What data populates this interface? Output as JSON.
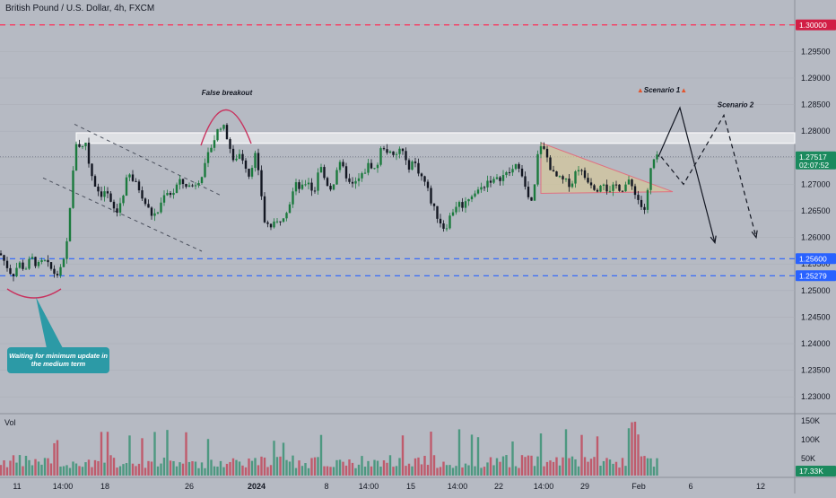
{
  "header": {
    "title": "British Pound / U.S. Dollar, 4h, FXCM"
  },
  "colors": {
    "background": "#b6bac3",
    "up": "#26a69a",
    "down": "#131722",
    "up_candle": "#1b7a3d",
    "resistance_line": "#ff2d55",
    "support_line": "#2962ff",
    "zone": "#ffffff",
    "triangle_fill": "#d6c89a",
    "triangle_edge": "#e07080",
    "callout_bg": "#2c9aa6"
  },
  "chart_data": {
    "type": "candlestick",
    "symbol": "GBPUSD",
    "timeframe": "4h",
    "y_axis": {
      "ticks": [
        "1.30000",
        "1.29500",
        "1.29000",
        "1.28500",
        "1.28000",
        "1.27500",
        "1.27000",
        "1.26500",
        "1.26000",
        "1.25500",
        "1.25000",
        "1.24500",
        "1.24000",
        "1.23500",
        "1.23000"
      ],
      "ylim": [
        1.227,
        1.303
      ]
    },
    "x_axis": {
      "ticks": [
        "11",
        "14:00",
        "18",
        "26",
        "2024",
        "8",
        "14:00",
        "15",
        "14:00",
        "22",
        "14:00",
        "29",
        "Feb",
        "6",
        "12"
      ]
    },
    "price_badges": {
      "current_price": "1.27517",
      "countdown": "02:07:52",
      "resistance": "1.30000",
      "support_upper": "1.25600",
      "support_lower": "1.25279"
    },
    "levels": [
      {
        "name": "resistance",
        "value": 1.3,
        "style": "dashed"
      },
      {
        "name": "support_upper",
        "value": 1.256,
        "style": "dashed"
      },
      {
        "name": "support_lower",
        "value": 1.25279,
        "style": "dashed"
      }
    ],
    "zone": {
      "from": 1.2777,
      "to": 1.2797
    },
    "current_price": 1.27517,
    "price_path": [
      [
        0,
        1.257
      ],
      [
        7,
        1.2548
      ],
      [
        14,
        1.2528
      ],
      [
        21,
        1.2552
      ],
      [
        28,
        1.254
      ],
      [
        35,
        1.2562
      ],
      [
        42,
        1.2546
      ],
      [
        49,
        1.2556
      ],
      [
        56,
        1.2542
      ],
      [
        63,
        1.2528
      ],
      [
        70,
        1.2545
      ],
      [
        74,
        1.258
      ],
      [
        78,
        1.266
      ],
      [
        82,
        1.273
      ],
      [
        86,
        1.2795
      ],
      [
        90,
        1.276
      ],
      [
        95,
        1.2785
      ],
      [
        100,
        1.273
      ],
      [
        106,
        1.27
      ],
      [
        112,
        1.268
      ],
      [
        118,
        1.269
      ],
      [
        124,
        1.266
      ],
      [
        130,
        1.2645
      ],
      [
        137,
        1.268
      ],
      [
        143,
        1.272
      ],
      [
        149,
        1.2705
      ],
      [
        156,
        1.269
      ],
      [
        163,
        1.266
      ],
      [
        170,
        1.264
      ],
      [
        177,
        1.265
      ],
      [
        184,
        1.269
      ],
      [
        192,
        1.268
      ],
      [
        199,
        1.2705
      ],
      [
        206,
        1.27
      ],
      [
        213,
        1.2695
      ],
      [
        220,
        1.2705
      ],
      [
        227,
        1.2725
      ],
      [
        234,
        1.2765
      ],
      [
        240,
        1.279
      ],
      [
        245,
        1.2812
      ],
      [
        250,
        1.2805
      ],
      [
        255,
        1.278
      ],
      [
        260,
        1.274
      ],
      [
        266,
        1.276
      ],
      [
        272,
        1.2745
      ],
      [
        278,
        1.2715
      ],
      [
        284,
        1.276
      ],
      [
        290,
        1.27
      ],
      [
        295,
        1.263
      ],
      [
        301,
        1.262
      ],
      [
        308,
        1.2625
      ],
      [
        315,
        1.264
      ],
      [
        322,
        1.266
      ],
      [
        329,
        1.27
      ],
      [
        336,
        1.269
      ],
      [
        343,
        1.271
      ],
      [
        350,
        1.268
      ],
      [
        356,
        1.274
      ],
      [
        363,
        1.2705
      ],
      [
        370,
        1.269
      ],
      [
        377,
        1.274
      ],
      [
        384,
        1.2725
      ],
      [
        391,
        1.2695
      ],
      [
        398,
        1.2705
      ],
      [
        405,
        1.272
      ],
      [
        412,
        1.274
      ],
      [
        419,
        1.2725
      ],
      [
        426,
        1.2775
      ],
      [
        433,
        1.276
      ],
      [
        440,
        1.2748
      ],
      [
        447,
        1.2772
      ],
      [
        454,
        1.273
      ],
      [
        461,
        1.2745
      ],
      [
        468,
        1.272
      ],
      [
        475,
        1.27
      ],
      [
        482,
        1.266
      ],
      [
        489,
        1.2635
      ],
      [
        496,
        1.2615
      ],
      [
        503,
        1.2645
      ],
      [
        510,
        1.2665
      ],
      [
        517,
        1.266
      ],
      [
        524,
        1.268
      ],
      [
        531,
        1.2685
      ],
      [
        538,
        1.2695
      ],
      [
        545,
        1.271
      ],
      [
        552,
        1.2705
      ],
      [
        559,
        1.2715
      ],
      [
        566,
        1.272
      ],
      [
        573,
        1.273
      ],
      [
        580,
        1.2738
      ],
      [
        587,
        1.268
      ],
      [
        594,
        1.266
      ],
      [
        599,
        1.275
      ],
      [
        603,
        1.2775
      ],
      [
        609,
        1.2755
      ],
      [
        616,
        1.272
      ],
      [
        623,
        1.271
      ],
      [
        630,
        1.2705
      ],
      [
        637,
        1.27
      ],
      [
        644,
        1.2735
      ],
      [
        651,
        1.2715
      ],
      [
        658,
        1.2705
      ],
      [
        665,
        1.269
      ],
      [
        672,
        1.271
      ],
      [
        679,
        1.268
      ],
      [
        686,
        1.27
      ],
      [
        693,
        1.269
      ],
      [
        700,
        1.2705
      ],
      [
        707,
        1.269
      ],
      [
        714,
        1.266
      ],
      [
        720,
        1.265
      ],
      [
        724,
        1.272
      ],
      [
        729,
        1.2745
      ],
      [
        734,
        1.2751
      ]
    ],
    "projections": [
      {
        "name": "Scenario 1",
        "points": [
          [
            734,
            1.2752
          ],
          [
            758,
            1.2844
          ],
          [
            797,
            1.259
          ]
        ],
        "style": "solid"
      },
      {
        "name": "Scenario 2",
        "points": [
          [
            737,
            1.2752
          ],
          [
            762,
            1.27
          ],
          [
            807,
            1.283
          ],
          [
            843,
            1.26
          ]
        ],
        "style": "dashed"
      }
    ],
    "annotations": [
      {
        "label": "False breakout",
        "x": 253,
        "y": 1.2868
      },
      {
        "label": "Scenario 1",
        "x": 738,
        "y": 1.2873,
        "marker": "fire"
      },
      {
        "label": "Scenario 2",
        "x": 820,
        "y": 1.2845
      }
    ],
    "callout": "Waiting for minimum update in the medium term",
    "volume": {
      "label": "Vol",
      "ticks": [
        "150K",
        "100K",
        "50K"
      ],
      "current": "17.33K",
      "ylim": [
        0,
        150000
      ]
    }
  }
}
